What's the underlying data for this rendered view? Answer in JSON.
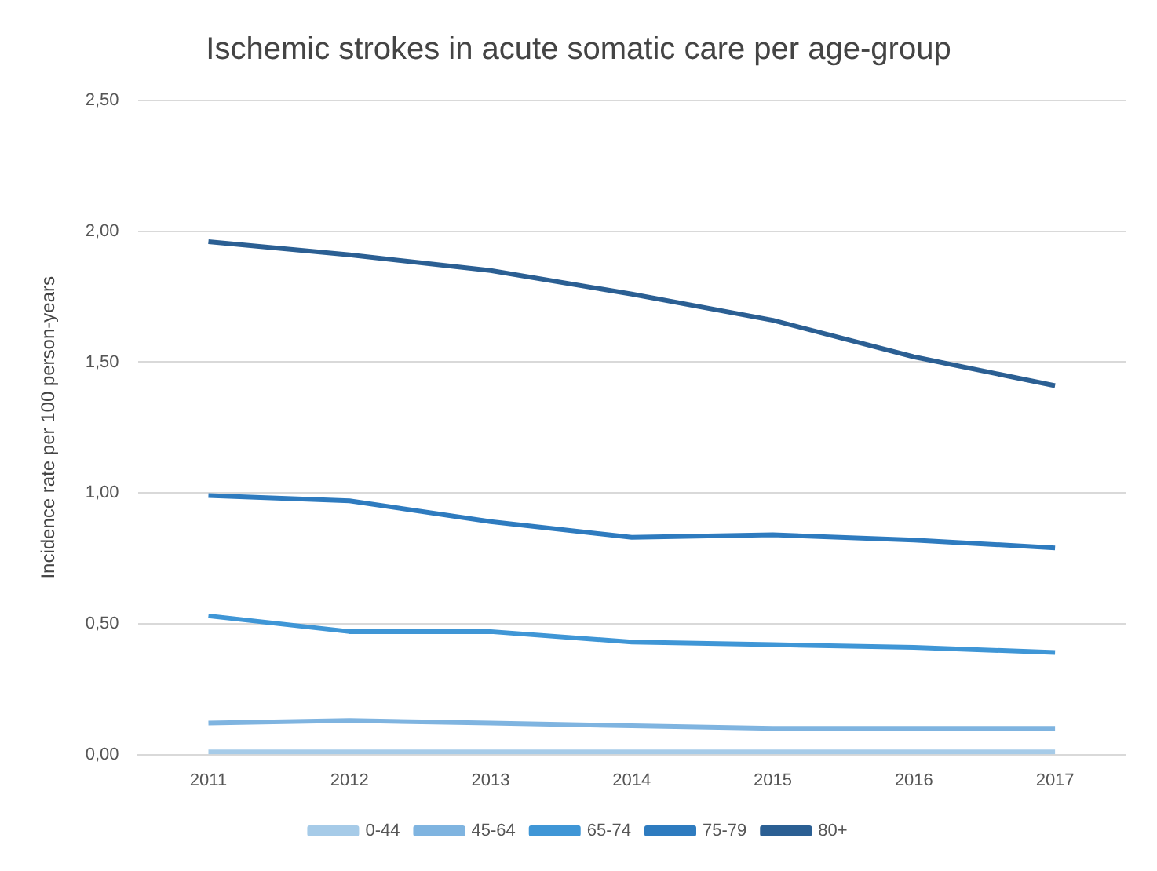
{
  "chart_data": {
    "type": "line",
    "title": "Ischemic strokes in acute somatic care per age-group",
    "ylabel": "Incidence rate per 100 person-years",
    "categories": [
      "2011",
      "2012",
      "2013",
      "2014",
      "2015",
      "2016",
      "2017"
    ],
    "ylim": [
      0,
      2.5
    ],
    "yticks": [
      {
        "value": 0,
        "label": "0,00"
      },
      {
        "value": 0.5,
        "label": "0,50"
      },
      {
        "value": 1,
        "label": "1,00"
      },
      {
        "value": 1.5,
        "label": "1,50"
      },
      {
        "value": 2,
        "label": "2,00"
      },
      {
        "value": 2.5,
        "label": "2,50"
      }
    ],
    "grid": "y",
    "legend": "bottom",
    "marker": "none",
    "line_style": "solid",
    "series": [
      {
        "name": "0-44",
        "color": "#a6cbe8",
        "values": [
          0.01,
          0.01,
          0.01,
          0.01,
          0.01,
          0.01,
          0.01
        ]
      },
      {
        "name": "45-64",
        "color": "#7fb4e0",
        "values": [
          0.12,
          0.13,
          0.12,
          0.11,
          0.1,
          0.1,
          0.1
        ]
      },
      {
        "name": "65-74",
        "color": "#3f96d6",
        "values": [
          0.53,
          0.47,
          0.47,
          0.43,
          0.42,
          0.41,
          0.39
        ]
      },
      {
        "name": "75-79",
        "color": "#2e7bbf",
        "values": [
          0.99,
          0.97,
          0.89,
          0.83,
          0.84,
          0.82,
          0.79
        ]
      },
      {
        "name": "80+",
        "color": "#2b5f93",
        "values": [
          1.96,
          1.91,
          1.85,
          1.76,
          1.66,
          1.52,
          1.41
        ]
      }
    ]
  }
}
